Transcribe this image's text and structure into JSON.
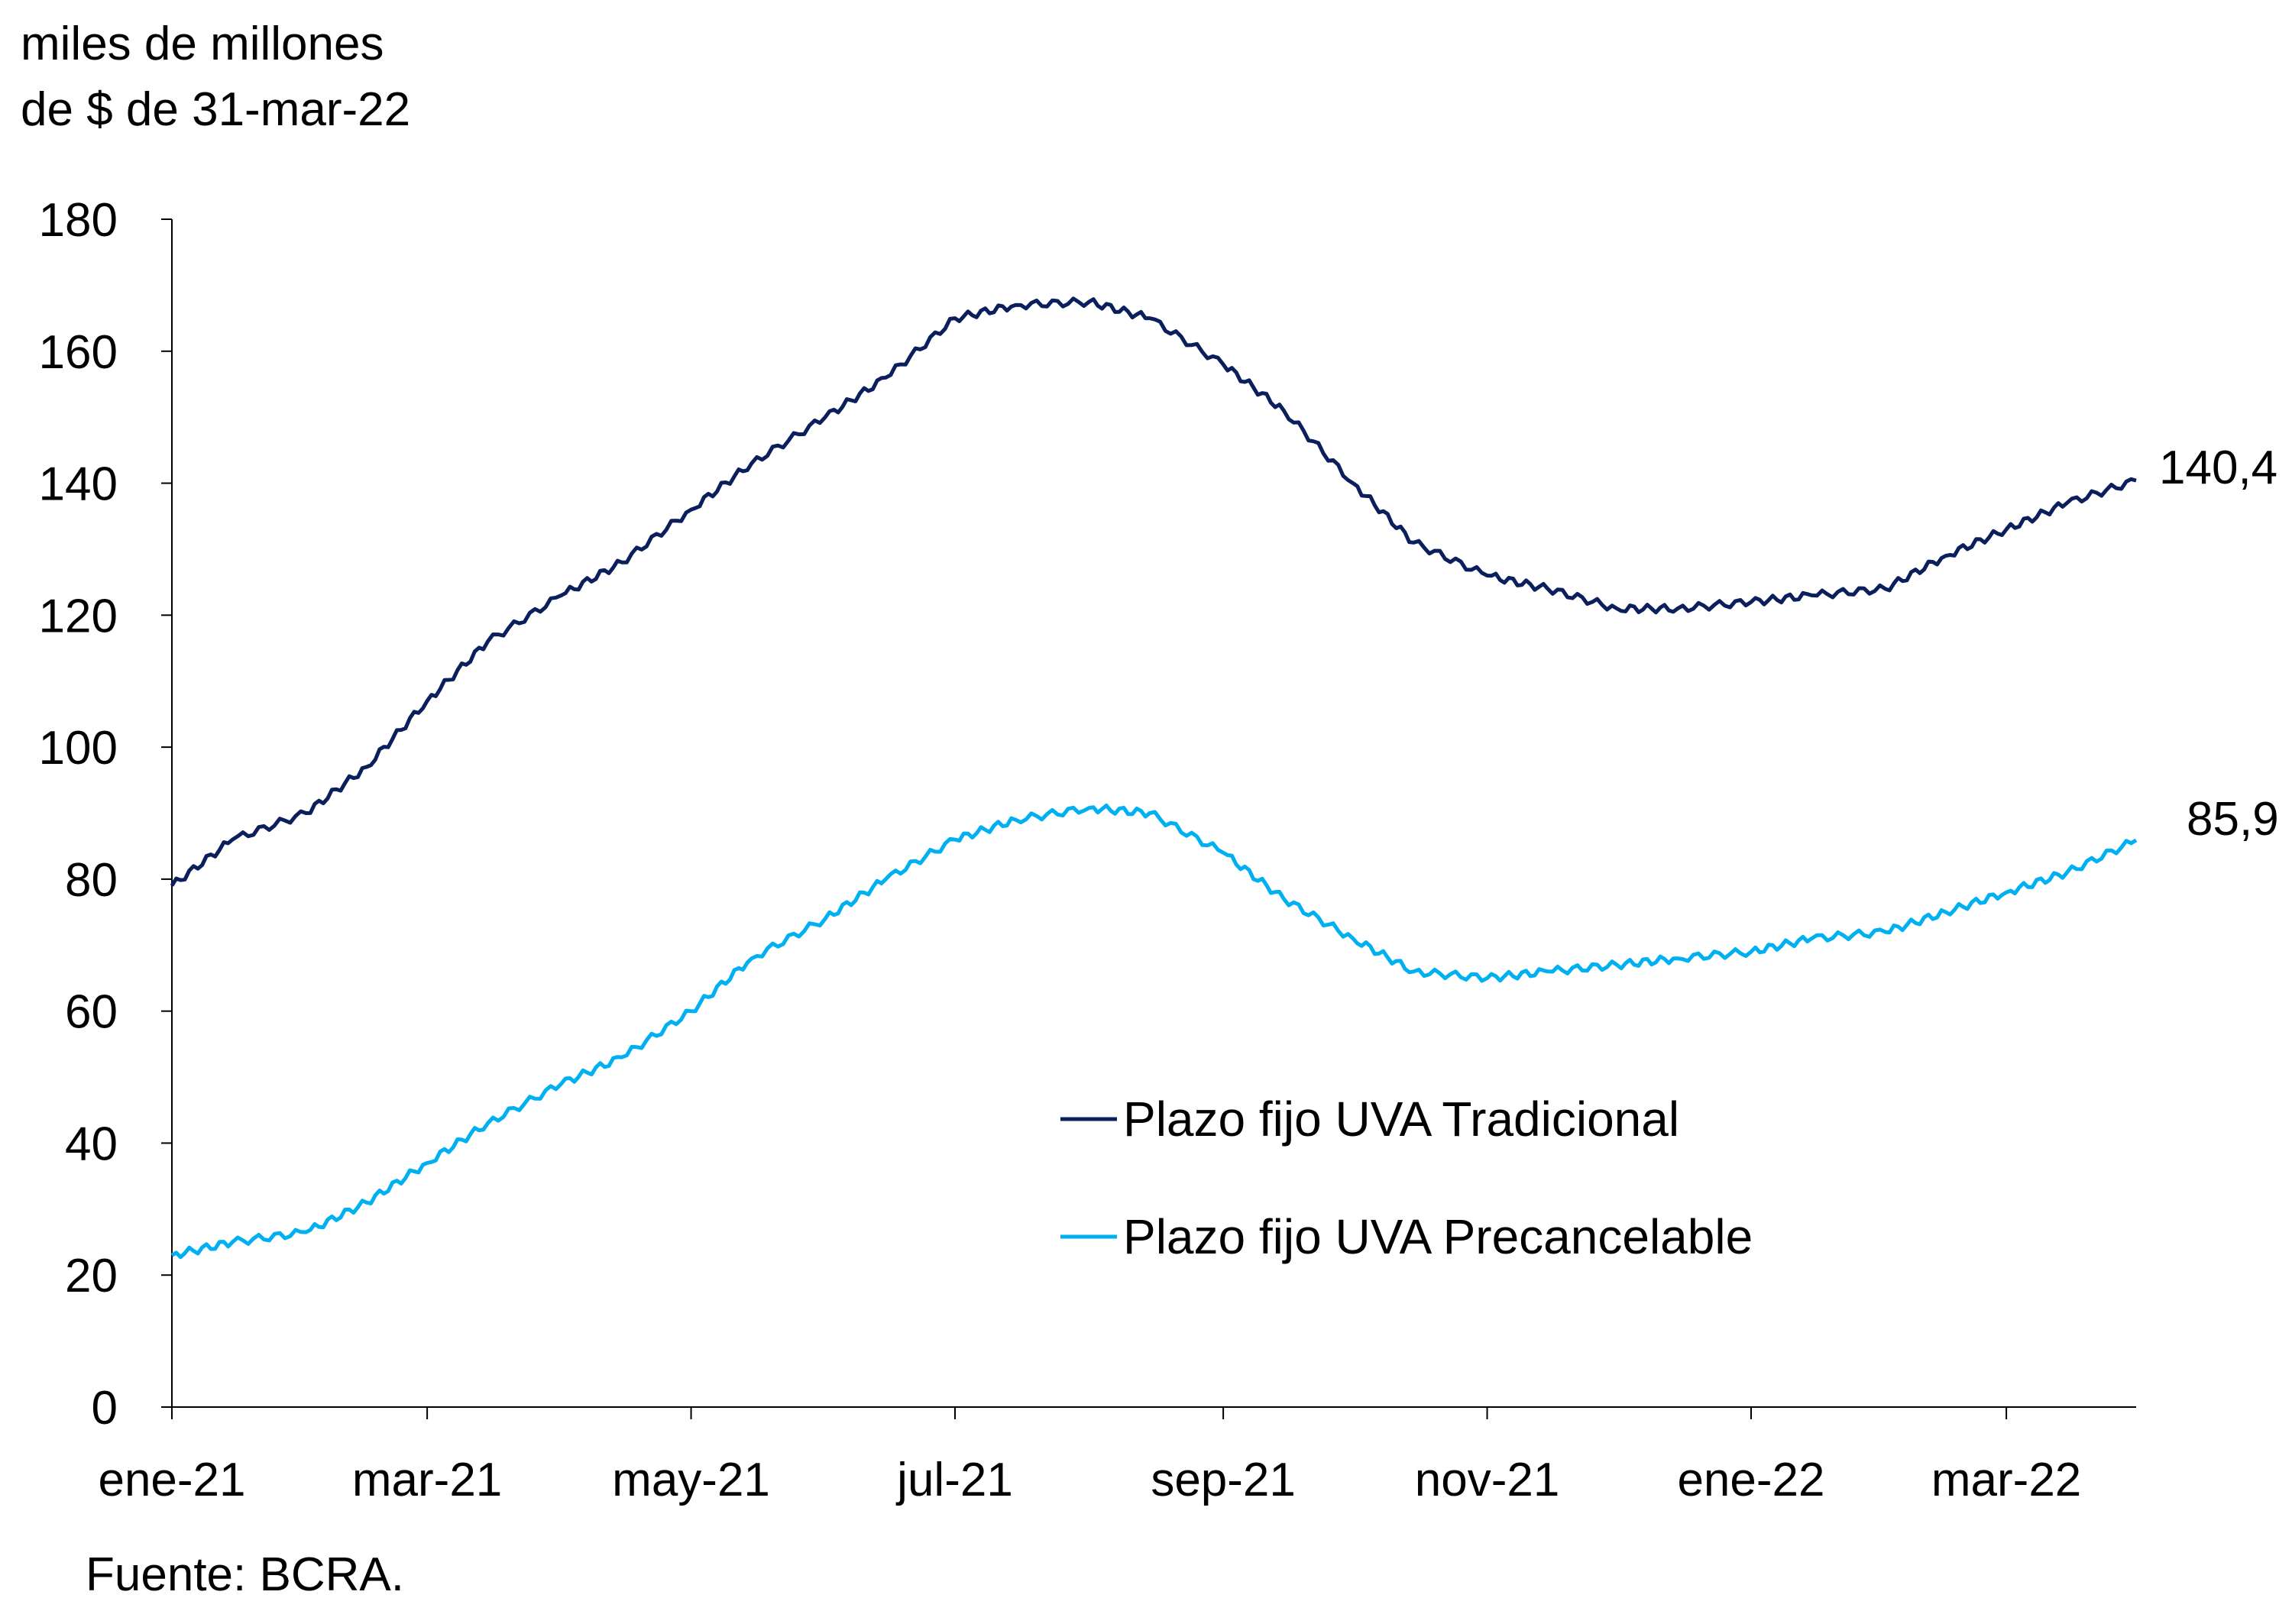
{
  "chart_data": {
    "type": "line",
    "title": "",
    "ylabel_lines": [
      "miles de millones",
      "de $ de 31-mar-22"
    ],
    "xlabel": "",
    "ylim": [
      0,
      180
    ],
    "yticks": [
      0,
      20,
      40,
      60,
      80,
      100,
      120,
      140,
      160,
      180
    ],
    "xlim": [
      "2021-01-01",
      "2022-03-31"
    ],
    "xticks": [
      {
        "date": "2021-01-01",
        "label": "ene-21"
      },
      {
        "date": "2021-03-01",
        "label": "mar-21"
      },
      {
        "date": "2021-05-01",
        "label": "may-21"
      },
      {
        "date": "2021-07-01",
        "label": "jul-21"
      },
      {
        "date": "2021-09-01",
        "label": "sep-21"
      },
      {
        "date": "2021-11-01",
        "label": "nov-21"
      },
      {
        "date": "2022-01-01",
        "label": "ene-22"
      },
      {
        "date": "2022-03-01",
        "label": "mar-22"
      }
    ],
    "grid": false,
    "legend_placement": "center-right",
    "x": [
      "2021-01-01",
      "2021-01-15",
      "2021-02-01",
      "2021-02-15",
      "2021-03-01",
      "2021-03-15",
      "2021-04-01",
      "2021-04-15",
      "2021-05-01",
      "2021-05-15",
      "2021-06-01",
      "2021-06-15",
      "2021-07-01",
      "2021-07-15",
      "2021-08-01",
      "2021-08-15",
      "2021-09-01",
      "2021-09-15",
      "2021-10-01",
      "2021-10-15",
      "2021-11-01",
      "2021-11-15",
      "2021-12-01",
      "2021-12-15",
      "2022-01-01",
      "2022-01-15",
      "2022-02-01",
      "2022-02-15",
      "2022-03-01",
      "2022-03-15",
      "2022-03-31"
    ],
    "series": [
      {
        "name": "Plazo fijo UVA Tradicional",
        "color": "#0a1f5c",
        "end_label": "140,4",
        "values": [
          79,
          86,
          90,
          97,
          107,
          116,
          123,
          128,
          136,
          143,
          150,
          156,
          165,
          167,
          167.5,
          165,
          158,
          151,
          140,
          131,
          126,
          124,
          121,
          121,
          122,
          123,
          124,
          129,
          133,
          137,
          140.4
        ]
      },
      {
        "name": "Plazo fijo UVA Precancelable",
        "color": "#00b0f0",
        "end_label": "85,9",
        "values": [
          23,
          25,
          26.5,
          31,
          37,
          43,
          49,
          53,
          60,
          68,
          74,
          80,
          86,
          89,
          90.8,
          90,
          84,
          77,
          71,
          66,
          65,
          66,
          67,
          68,
          69,
          71,
          72,
          75,
          78,
          81,
          85.9
        ]
      }
    ],
    "source": "Fuente: BCRA."
  }
}
